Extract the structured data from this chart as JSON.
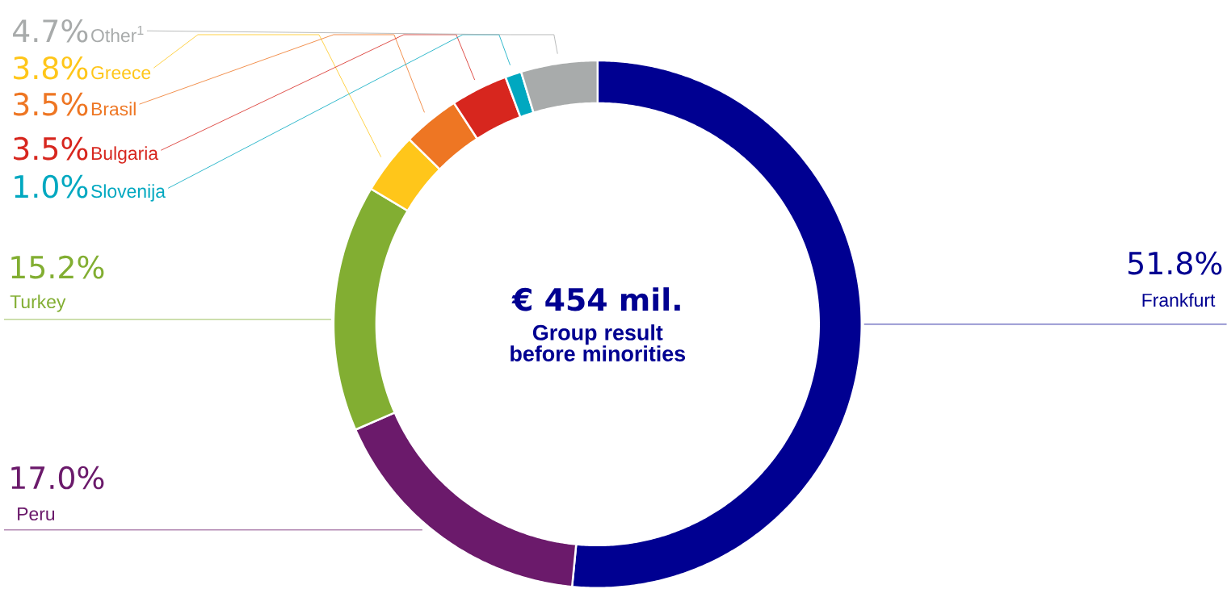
{
  "chart_data": {
    "type": "donut",
    "categories": [
      "Frankfurt",
      "Peru",
      "Turkey",
      "Greece",
      "Brasil",
      "Bulgaria",
      "Slovenija",
      "Other$^{1}$"
    ],
    "values": [
      51.8,
      17.0,
      15.2,
      3.8,
      3.5,
      3.5,
      1.0,
      4.7
    ],
    "value_labels": [
      "51.8%",
      "17.0%",
      "15.2%",
      "3.8%",
      "3.5%",
      "3.5%",
      "1.0%",
      "4.7%"
    ],
    "colors": [
      "#000091",
      "#6b1a6b",
      "#82ae32",
      "#ffc61a",
      "#ee7623",
      "#d7261e",
      "#00a8c0",
      "#a8abab"
    ],
    "annotations": [
      "€ 454 mil.",
      "Group result before minorities"
    ]
  }
}
